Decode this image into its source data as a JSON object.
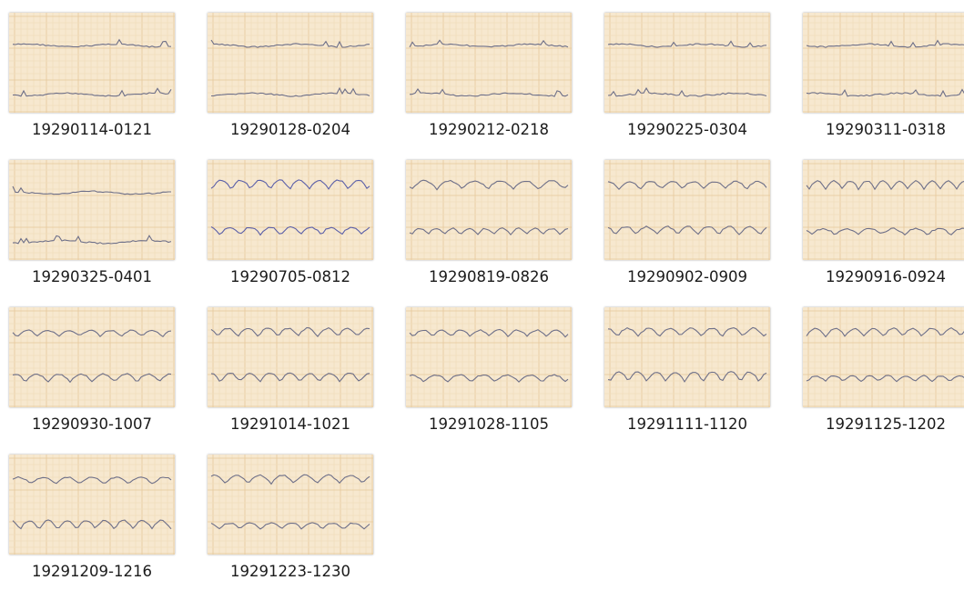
{
  "files": [
    "19290114-0121",
    "19290128-0204",
    "19290212-0218",
    "19290225-0304",
    "19290311-0318",
    "19290325-0401",
    "19290705-0812",
    "19290819-0826",
    "19290902-0909",
    "19290916-0924",
    "19290930-1007",
    "19291014-1021",
    "19291028-1105",
    "19291111-1120",
    "19291125-1202",
    "19291209-1216",
    "19291223-1230"
  ]
}
